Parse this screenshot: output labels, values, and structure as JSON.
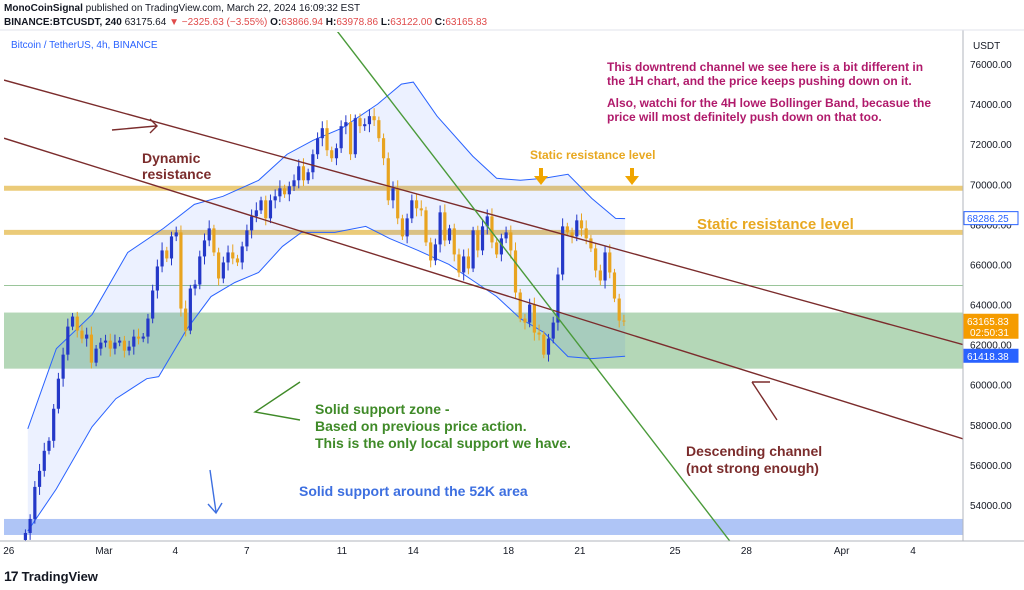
{
  "header": {
    "author": "MonoCoinSignal",
    "published": "published on TradingView.com, March 22, 2024 16:09:32 EST",
    "symbol": "BINANCE:BTCUSDT, 240",
    "price": "63175.64",
    "change": "−2325.63 (−3.55%)",
    "o_label": "O:",
    "o": "63866.94",
    "h_label": "H:",
    "h": "63978.86",
    "l_label": "L:",
    "l": "63122.00",
    "c_label": "C:",
    "c": "63165.83"
  },
  "footer": {
    "logo_text": "TradingView"
  },
  "chart_data": {
    "type": "line",
    "title": "Bitcoin / TetherUS, 4h, BINANCE",
    "currency": "USDT",
    "ylim": [
      52200,
      77600
    ],
    "y_ticks": [
      54000,
      56000,
      58000,
      60000,
      62000,
      64000,
      66000,
      68000,
      70000,
      72000,
      74000,
      76000
    ],
    "y_tick_labels": [
      "54000.00",
      "56000.00",
      "58000.00",
      "60000.00",
      "62000.00",
      "64000.00",
      "66000.00",
      "68000.00",
      "70000.00",
      "72000.00",
      "74000.00",
      "76000.00"
    ],
    "x_ticks": [
      {
        "label": "26",
        "day": 0
      },
      {
        "label": "Mar",
        "day": 4
      },
      {
        "label": "4",
        "day": 7
      },
      {
        "label": "7",
        "day": 10
      },
      {
        "label": "11",
        "day": 14
      },
      {
        "label": "14",
        "day": 17
      },
      {
        "label": "18",
        "day": 21
      },
      {
        "label": "21",
        "day": 24
      },
      {
        "label": "25",
        "day": 28
      },
      {
        "label": "28",
        "day": 31
      },
      {
        "label": "Apr",
        "day": 35
      },
      {
        "label": "4",
        "day": 38
      }
    ],
    "x_range_days": [
      -0.2,
      40.1
    ],
    "price_labels": [
      {
        "value": 68286.25,
        "text": "68286.25",
        "color": "#2962ff",
        "style": "outline"
      },
      {
        "value": 63165.83,
        "text": "63165.83",
        "sub": "02:50:31",
        "color": "#f59c00",
        "style": "fill"
      },
      {
        "value": 61418.38,
        "text": "61418.38",
        "color": "#2962ff",
        "style": "fill"
      }
    ],
    "candles_x_range_days": [
      0.7,
      25.85
    ],
    "closes": [
      52600,
      53300,
      54900,
      55700,
      56700,
      57200,
      58800,
      60300,
      61500,
      62900,
      63400,
      62700,
      62300,
      62500,
      61100,
      61800,
      62100,
      62200,
      61800,
      62100,
      62200,
      61700,
      61900,
      62400,
      62300,
      62400,
      63300,
      64700,
      65900,
      66700,
      66300,
      67400,
      67600,
      63800,
      62700,
      64800,
      65000,
      66400,
      67200,
      67800,
      66600,
      65300,
      66100,
      66600,
      66300,
      66100,
      66900,
      67700,
      68400,
      68700,
      69200,
      68300,
      69200,
      69400,
      69800,
      69500,
      69900,
      70200,
      70900,
      70200,
      70600,
      71500,
      72300,
      72800,
      71700,
      71300,
      71800,
      72900,
      73100,
      71500,
      73300,
      72900,
      73000,
      73400,
      73200,
      72300,
      71300,
      69200,
      69800,
      68300,
      67400,
      68300,
      69200,
      68800,
      68700,
      67100,
      66200,
      67000,
      68600,
      67200,
      67800,
      66500,
      65600,
      66400,
      65800,
      67700,
      66700,
      67900,
      68400,
      67100,
      66500,
      67300,
      67600,
      66700,
      64600,
      63300,
      63100,
      64000,
      62600,
      62500,
      61500,
      62300,
      63100,
      65500,
      67900,
      67600,
      67400,
      68200,
      67800,
      67300,
      66800,
      65700,
      65200,
      66600,
      65600,
      64300,
      63200,
      63166
    ],
    "bollinger": {
      "upper": [
        [
          0.8,
          57800
        ],
        [
          2,
          61800
        ],
        [
          3.5,
          63500
        ],
        [
          5,
          66600
        ],
        [
          6.5,
          67800
        ],
        [
          7.8,
          69000
        ],
        [
          9,
          69400
        ],
        [
          10.5,
          70200
        ],
        [
          11.7,
          71500
        ],
        [
          12.8,
          72200
        ],
        [
          14,
          72800
        ],
        [
          15.5,
          74000
        ],
        [
          16.5,
          75000
        ],
        [
          17,
          75100
        ],
        [
          18,
          73400
        ],
        [
          19.5,
          71400
        ],
        [
          20.5,
          70300
        ],
        [
          21.5,
          70200
        ],
        [
          22.5,
          70300
        ],
        [
          23.5,
          70500
        ],
        [
          24.5,
          69300
        ],
        [
          25.5,
          68300
        ],
        [
          25.9,
          68286
        ]
      ],
      "basis": [
        [
          1.5,
          59500
        ],
        [
          3,
          61000
        ],
        [
          5,
          62400
        ],
        [
          7,
          64200
        ],
        [
          8,
          65500
        ],
        [
          10,
          67500
        ],
        [
          12,
          69100
        ],
        [
          14,
          70700
        ],
        [
          15,
          71900
        ],
        [
          16,
          72400
        ],
        [
          17,
          72600
        ],
        [
          18,
          71600
        ],
        [
          19.5,
          69800
        ],
        [
          21,
          68600
        ],
        [
          22.5,
          67700
        ],
        [
          24,
          67500
        ],
        [
          25.9,
          67200
        ]
      ],
      "lower": [
        [
          0.8,
          52700
        ],
        [
          2,
          54800
        ],
        [
          3.5,
          57900
        ],
        [
          4.5,
          59300
        ],
        [
          5.8,
          60300
        ],
        [
          6.3,
          60400
        ],
        [
          7.5,
          62800
        ],
        [
          8.5,
          64400
        ],
        [
          9.5,
          65100
        ],
        [
          10.5,
          65600
        ],
        [
          11.5,
          66900
        ],
        [
          12.3,
          67600
        ],
        [
          13.7,
          67600
        ],
        [
          15,
          67900
        ],
        [
          16,
          67300
        ],
        [
          17.2,
          66700
        ],
        [
          18.5,
          66000
        ],
        [
          19.5,
          65200
        ],
        [
          20.5,
          64400
        ],
        [
          21.5,
          63300
        ],
        [
          22.5,
          62600
        ],
        [
          23.5,
          61400
        ],
        [
          24.5,
          61300
        ],
        [
          25.9,
          61418
        ]
      ]
    },
    "zones": [
      {
        "name": "support-zone",
        "from": 60800,
        "to": 63600,
        "color": "#77b77c",
        "opacity": 0.55
      },
      {
        "name": "support-52k",
        "from": 52500,
        "to": 53300,
        "color": "#7a9ef0",
        "opacity": 0.6
      }
    ],
    "horizontal_lines": [
      {
        "name": "static-resistance-70k",
        "value": 69800,
        "color": "#e9c56a",
        "width": 5
      },
      {
        "name": "static-resistance-67k",
        "value": 67600,
        "color": "#e9c56a",
        "width": 5
      },
      {
        "name": "thin-level-65k",
        "value": 64950,
        "color": "#8fbf8f",
        "width": 1
      }
    ],
    "trend_lines": [
      {
        "name": "channel-upper",
        "from": [
          -0.2,
          75200
        ],
        "to": [
          40.1,
          62000
        ],
        "color": "#7b2c2c"
      },
      {
        "name": "channel-lower",
        "from": [
          -0.2,
          72300
        ],
        "to": [
          40.1,
          57300
        ],
        "color": "#7b2c2c"
      },
      {
        "name": "green-downtrend",
        "from": [
          13.7,
          77800
        ],
        "to": [
          30.3,
          52200
        ],
        "color": "#4a9a3a"
      }
    ],
    "annotations": [
      {
        "name": "annotation-top-note-1",
        "lines": [
          "This downtrend channel we see here is a bit different in",
          "the 1H chart, and the price keeps pushing down on it."
        ],
        "color": "#b01a6b",
        "size": 12
      },
      {
        "name": "annotation-top-note-2",
        "lines": [
          "Also, watchi for the 4H lowe Bollinger Band, becasue the",
          "price will most definitely push down on that too."
        ],
        "color": "#b01a6b",
        "size": 12
      },
      {
        "name": "annotation-dynamic-resistance",
        "lines": [
          "Dynamic",
          "resistance"
        ],
        "color": "#7b2c2c",
        "size": 14
      },
      {
        "name": "annotation-static-resistance-small",
        "lines": [
          "Static resistance level"
        ],
        "color": "#e8a820",
        "size": 12
      },
      {
        "name": "annotation-static-resistance-large",
        "lines": [
          "Static resistance level"
        ],
        "color": "#e8a820",
        "size": 15
      },
      {
        "name": "annotation-solid-support-zone",
        "lines": [
          "Solid support zone -",
          "Based on previous price action.",
          "This is the only local support we have."
        ],
        "color": "#3f8a28",
        "size": 14
      },
      {
        "name": "annotation-solid-support-52k",
        "lines": [
          "Solid support around the 52K area"
        ],
        "color": "#3d6fe0",
        "size": 14
      },
      {
        "name": "annotation-descending-channel",
        "lines": [
          "Descending channel",
          "(not strong enough)"
        ],
        "color": "#7b2c2c",
        "size": 14
      }
    ]
  }
}
